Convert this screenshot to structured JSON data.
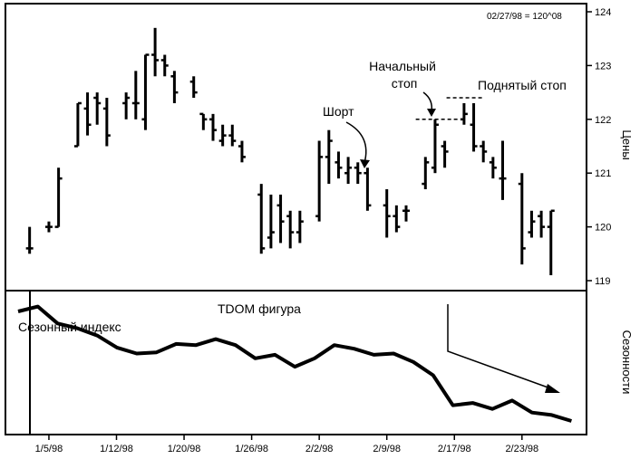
{
  "chart_data": [
    {
      "type": "bar",
      "subtype": "ohlc",
      "corner_label": "02/27/98 = 120^08",
      "ylabel": "Цены",
      "ylim": [
        118.8,
        124.1
      ],
      "yticks": [
        119,
        120,
        121,
        122,
        123,
        124
      ],
      "annotations": {
        "short": "Шорт",
        "initial_stop": "Начальный стоп",
        "raised_stop": "Поднятый стоп"
      },
      "bars": [
        {
          "d": 1,
          "h": 120.0,
          "l": 119.5,
          "o": 119.6,
          "c": 119.6
        },
        {
          "d": 3,
          "h": 120.1,
          "l": 119.9,
          "o": 120.0,
          "c": 120.0
        },
        {
          "d": 4,
          "h": 121.1,
          "l": 120.0,
          "o": 120.0,
          "c": 120.9
        },
        {
          "d": 6,
          "h": 122.3,
          "l": 121.5,
          "o": 121.5,
          "c": 122.3
        },
        {
          "d": 7,
          "h": 122.5,
          "l": 121.7,
          "o": 122.2,
          "c": 121.9
        },
        {
          "d": 8,
          "h": 122.5,
          "l": 121.9,
          "o": 122.4,
          "c": 122.3
        },
        {
          "d": 9,
          "h": 122.4,
          "l": 121.5,
          "o": 122.2,
          "c": 121.7
        },
        {
          "d": 11,
          "h": 122.5,
          "l": 122.0,
          "o": 122.3,
          "c": 122.4
        },
        {
          "d": 12,
          "h": 122.9,
          "l": 122.0,
          "o": 122.3,
          "c": 122.3
        },
        {
          "d": 13,
          "h": 123.2,
          "l": 121.8,
          "o": 122.0,
          "c": 123.2
        },
        {
          "d": 14,
          "h": 123.7,
          "l": 122.8,
          "o": 123.2,
          "c": 123.1
        },
        {
          "d": 15,
          "h": 123.2,
          "l": 122.8,
          "o": 123.1,
          "c": 123.0
        },
        {
          "d": 16,
          "h": 122.9,
          "l": 122.3,
          "o": 122.8,
          "c": 122.5
        },
        {
          "d": 18,
          "h": 122.8,
          "l": 122.4,
          "o": 122.7,
          "c": 122.5
        },
        {
          "d": 19,
          "h": 122.1,
          "l": 121.8,
          "o": 122.1,
          "c": 122.0
        },
        {
          "d": 20,
          "h": 122.1,
          "l": 121.6,
          "o": 122.0,
          "c": 121.8
        },
        {
          "d": 21,
          "h": 121.9,
          "l": 121.5,
          "o": 121.6,
          "c": 121.7
        },
        {
          "d": 22,
          "h": 121.9,
          "l": 121.5,
          "o": 121.7,
          "c": 121.6
        },
        {
          "d": 23,
          "h": 121.6,
          "l": 121.2,
          "o": 121.5,
          "c": 121.3
        },
        {
          "d": 25,
          "h": 120.8,
          "l": 119.5,
          "o": 120.6,
          "c": 119.6
        },
        {
          "d": 26,
          "h": 120.6,
          "l": 119.6,
          "o": 119.8,
          "c": 119.9
        },
        {
          "d": 27,
          "h": 120.6,
          "l": 119.7,
          "o": 120.4,
          "c": 120.1
        },
        {
          "d": 28,
          "h": 120.3,
          "l": 119.6,
          "o": 120.2,
          "c": 119.9
        },
        {
          "d": 29,
          "h": 120.3,
          "l": 119.7,
          "o": 119.9,
          "c": 120.1
        },
        {
          "d": 31,
          "h": 121.6,
          "l": 120.1,
          "o": 120.2,
          "c": 121.3
        },
        {
          "d": 32,
          "h": 121.8,
          "l": 120.8,
          "o": 121.3,
          "c": 121.6
        },
        {
          "d": 33,
          "h": 121.4,
          "l": 120.9,
          "o": 121.2,
          "c": 121.1
        },
        {
          "d": 34,
          "h": 121.3,
          "l": 120.8,
          "o": 121.0,
          "c": 121.1
        },
        {
          "d": 35,
          "h": 121.2,
          "l": 120.8,
          "o": 121.1,
          "c": 121.0
        },
        {
          "d": 36,
          "h": 121.1,
          "l": 120.3,
          "o": 121.0,
          "c": 120.4
        },
        {
          "d": 38,
          "h": 120.7,
          "l": 119.8,
          "o": 120.4,
          "c": 120.2
        },
        {
          "d": 39,
          "h": 120.4,
          "l": 119.9,
          "o": 120.2,
          "c": 120.0
        },
        {
          "d": 40,
          "h": 120.4,
          "l": 120.1,
          "o": 120.3,
          "c": 120.3
        },
        {
          "d": 42,
          "h": 121.3,
          "l": 120.7,
          "o": 120.8,
          "c": 121.2
        },
        {
          "d": 43,
          "h": 122.0,
          "l": 121.0,
          "o": 121.1,
          "c": 121.9
        },
        {
          "d": 44,
          "h": 121.6,
          "l": 121.1,
          "o": 121.5,
          "c": 121.4
        },
        {
          "d": 46,
          "h": 122.3,
          "l": 121.9,
          "o": 122.0,
          "c": 122.1
        },
        {
          "d": 47,
          "h": 122.3,
          "l": 121.4,
          "o": 121.9,
          "c": 121.5
        },
        {
          "d": 48,
          "h": 121.6,
          "l": 121.2,
          "o": 121.5,
          "c": 121.4
        },
        {
          "d": 49,
          "h": 121.3,
          "l": 120.9,
          "o": 121.2,
          "c": 121.1
        },
        {
          "d": 50,
          "h": 121.6,
          "l": 120.5,
          "o": 120.9,
          "c": 120.9
        },
        {
          "d": 52,
          "h": 121.0,
          "l": 119.3,
          "o": 120.8,
          "c": 119.6
        },
        {
          "d": 53,
          "h": 120.3,
          "l": 119.8,
          "o": 119.9,
          "c": 120.1
        },
        {
          "d": 54,
          "h": 120.3,
          "l": 119.8,
          "o": 120.2,
          "c": 120.0
        },
        {
          "d": 55,
          "h": 120.3,
          "l": 119.1,
          "o": 120.0,
          "c": 120.3
        }
      ],
      "initial_stop_level": 122.0,
      "raised_stop_level": 122.4
    },
    {
      "type": "line",
      "title": "TDOM фигура",
      "series_label": "Сезонный индекс",
      "ylabel": "Сезонности",
      "ylim": [
        0,
        100
      ],
      "x": [
        0,
        2,
        4,
        6,
        8,
        10,
        12,
        14,
        16,
        18,
        20,
        22,
        24,
        26,
        28,
        30,
        32,
        34,
        36,
        38,
        40,
        42,
        44,
        46,
        48,
        50,
        52,
        54,
        56
      ],
      "values": [
        91,
        95,
        81,
        77,
        71,
        61,
        56,
        57,
        64,
        63,
        68,
        63,
        52,
        55,
        45,
        52,
        63,
        60,
        55,
        56,
        49,
        38,
        13,
        15,
        10,
        17,
        7,
        5,
        0
      ],
      "x_ticks": [
        "1/5/98",
        "1/12/98",
        "1/20/98",
        "1/26/98",
        "2/2/98",
        "2/9/98",
        "2/17/98",
        "2/23/98"
      ],
      "x_tick_days": [
        3,
        10,
        17,
        24,
        31,
        38,
        45,
        52
      ]
    }
  ]
}
